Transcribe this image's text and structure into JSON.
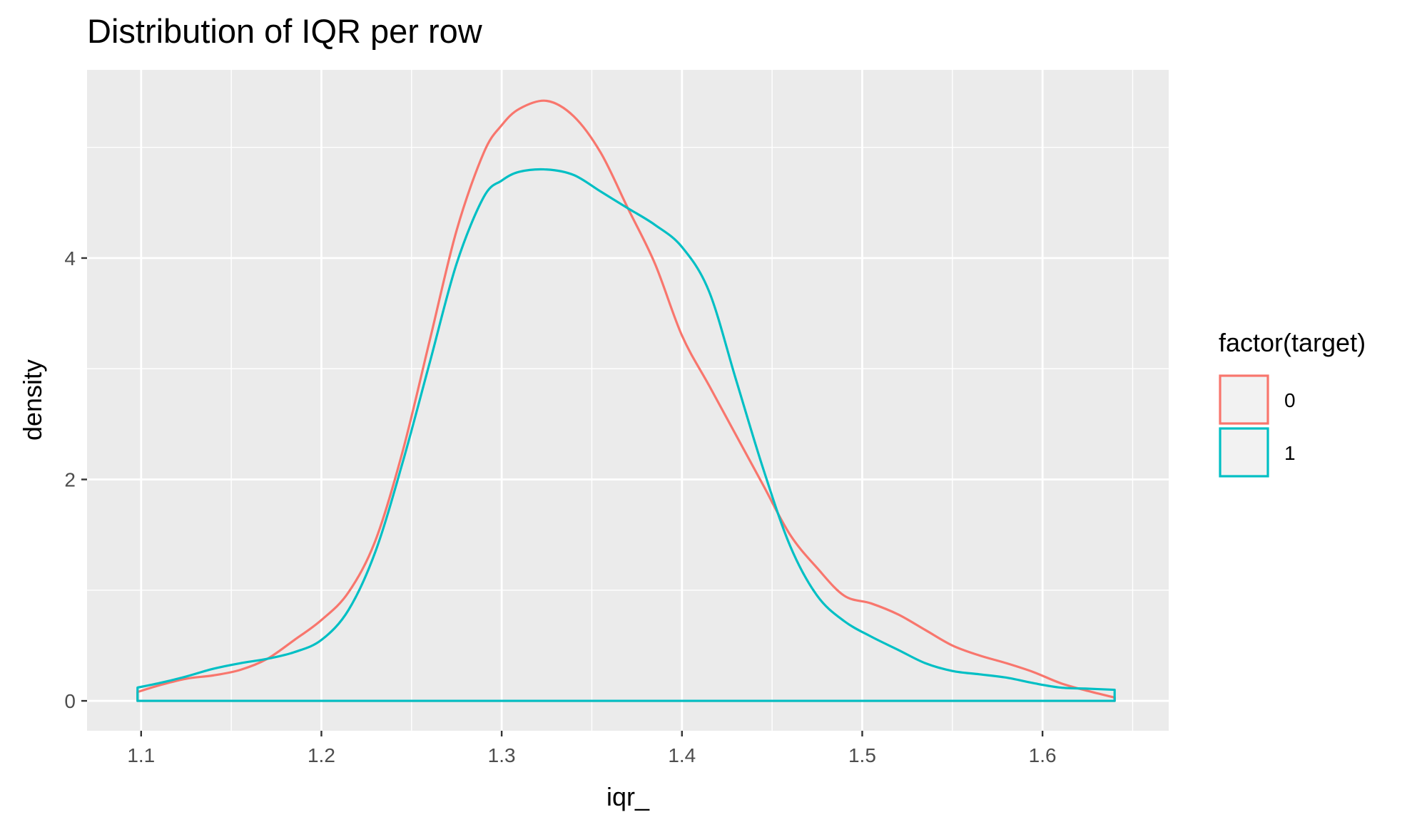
{
  "chart_data": {
    "type": "line",
    "title": "Distribution of IQR per row",
    "xlabel": "iqr_",
    "ylabel": "density",
    "xlim": [
      1.07,
      1.67
    ],
    "ylim": [
      -0.27,
      5.7
    ],
    "x_ticks": [
      1.1,
      1.2,
      1.3,
      1.4,
      1.5,
      1.6
    ],
    "x_tick_labels": [
      "1.1",
      "1.2",
      "1.3",
      "1.4",
      "1.5",
      "1.6"
    ],
    "y_ticks": [
      0,
      2,
      4
    ],
    "y_tick_labels": [
      "0",
      "2",
      "4"
    ],
    "grid": true,
    "legend": {
      "title": "factor(target)",
      "placement": "right"
    },
    "series": [
      {
        "name": "0",
        "color": "#F8766D",
        "x": [
          1.098,
          1.11,
          1.125,
          1.14,
          1.155,
          1.17,
          1.185,
          1.2,
          1.215,
          1.23,
          1.245,
          1.26,
          1.275,
          1.29,
          1.3,
          1.31,
          1.325,
          1.34,
          1.355,
          1.37,
          1.385,
          1.4,
          1.415,
          1.43,
          1.445,
          1.46,
          1.475,
          1.49,
          1.505,
          1.52,
          1.535,
          1.55,
          1.565,
          1.58,
          1.595,
          1.61,
          1.625,
          1.64
        ],
        "y": [
          0.08,
          0.14,
          0.2,
          0.23,
          0.28,
          0.38,
          0.55,
          0.73,
          0.98,
          1.45,
          2.25,
          3.25,
          4.25,
          4.95,
          5.2,
          5.35,
          5.42,
          5.28,
          4.95,
          4.45,
          3.95,
          3.3,
          2.85,
          2.4,
          1.95,
          1.5,
          1.2,
          0.95,
          0.88,
          0.78,
          0.64,
          0.5,
          0.41,
          0.34,
          0.26,
          0.16,
          0.09,
          0.03
        ]
      },
      {
        "name": "1",
        "color": "#00BFC4",
        "x": [
          1.098,
          1.11,
          1.125,
          1.14,
          1.155,
          1.17,
          1.185,
          1.2,
          1.215,
          1.23,
          1.245,
          1.26,
          1.275,
          1.29,
          1.3,
          1.31,
          1.325,
          1.34,
          1.355,
          1.37,
          1.385,
          1.4,
          1.415,
          1.43,
          1.445,
          1.46,
          1.475,
          1.49,
          1.505,
          1.52,
          1.535,
          1.55,
          1.565,
          1.58,
          1.595,
          1.61,
          1.625,
          1.64
        ],
        "y": [
          0.12,
          0.16,
          0.22,
          0.29,
          0.34,
          0.38,
          0.44,
          0.55,
          0.82,
          1.35,
          2.15,
          3.05,
          3.95,
          4.55,
          4.7,
          4.78,
          4.8,
          4.75,
          4.6,
          4.45,
          4.3,
          4.1,
          3.7,
          2.9,
          2.1,
          1.4,
          0.95,
          0.72,
          0.58,
          0.46,
          0.34,
          0.27,
          0.24,
          0.21,
          0.16,
          0.12,
          0.11,
          0.1
        ]
      }
    ]
  }
}
